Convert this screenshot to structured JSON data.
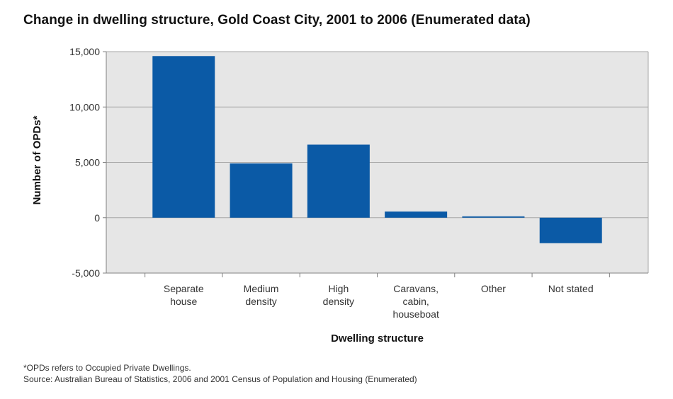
{
  "title": "Change in dwelling structure, Gold Coast City, 2001 to 2006 (Enumerated data)",
  "footnote": {
    "line1": "*OPDs refers to Occupied Private Dwellings.",
    "line2": "Source: Australian Bureau of Statistics, 2006 and 2001 Census of Population and Housing (Enumerated)"
  },
  "colors": {
    "bar": "#0b5aa6",
    "plot_bg": "#e6e6e6",
    "grid": "#a6a6a6",
    "axis": "#808080"
  },
  "chart_data": {
    "type": "bar",
    "title": "Change in dwelling structure, Gold Coast City, 2001 to 2006 (Enumerated data)",
    "xlabel": "Dwelling structure",
    "ylabel": "Number of OPDs*",
    "categories": [
      [
        "Separate",
        "house"
      ],
      [
        "Medium",
        "density"
      ],
      [
        "High",
        "density"
      ],
      [
        "Caravans,",
        "cabin,",
        "houseboat"
      ],
      [
        "Other"
      ],
      [
        "Not stated"
      ]
    ],
    "values": [
      14600,
      4900,
      6600,
      560,
      120,
      -2300
    ],
    "ylim": [
      -5000,
      15000
    ],
    "yticks": [
      -5000,
      0,
      5000,
      10000,
      15000
    ],
    "ytick_labels": [
      "-5,000",
      "0",
      "5,000",
      "10,000",
      "15,000"
    ],
    "grid": true,
    "legend": "none"
  }
}
